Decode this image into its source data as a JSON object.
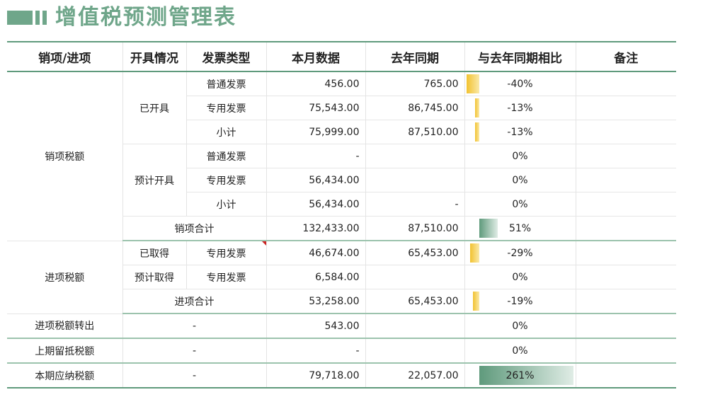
{
  "title": "增值税预测管理表",
  "headers": [
    "销项/进项",
    "开具情况",
    "发票类型",
    "本月数据",
    "去年同期",
    "与去年同期相比",
    "备注"
  ],
  "rows": {
    "sales_label": "销项税额",
    "issued_label": "已开具",
    "planned_label": "预计开具",
    "r1": {
      "type": "普通发票",
      "cur": "456.00",
      "prev": "765.00",
      "pct": "-40%",
      "ratio": -0.4
    },
    "r2": {
      "type": "专用发票",
      "cur": "75,543.00",
      "prev": "86,745.00",
      "pct": "-13%",
      "ratio": -0.13
    },
    "r3": {
      "type": "小计",
      "cur": "75,999.00",
      "prev": "87,510.00",
      "pct": "-13%",
      "ratio": -0.13
    },
    "r4": {
      "type": "普通发票",
      "cur": "-",
      "prev": "",
      "pct": "0%",
      "ratio": 0
    },
    "r5": {
      "type": "专用发票",
      "cur": "56,434.00",
      "prev": "",
      "pct": "0%",
      "ratio": 0
    },
    "r6": {
      "type": "小计",
      "cur": "56,434.00",
      "prev": "-",
      "pct": "0%",
      "ratio": 0
    },
    "r7": {
      "label": "销项合计",
      "cur": "132,433.00",
      "prev": "87,510.00",
      "pct": "51%",
      "ratio": 0.51
    },
    "input_label": "进项税额",
    "obtained_label": "已取得",
    "planned_obtain_label": "预计取得",
    "r8": {
      "type": "专用发票",
      "cur": "46,674.00",
      "prev": "65,453.00",
      "pct": "-29%",
      "ratio": -0.29
    },
    "r9": {
      "type": "专用发票",
      "cur": "6,584.00",
      "prev": "",
      "pct": "0%",
      "ratio": 0
    },
    "r10": {
      "label": "进项合计",
      "cur": "53,258.00",
      "prev": "65,453.00",
      "pct": "-19%",
      "ratio": -0.19
    },
    "r11": {
      "label": "进项税额转出",
      "dash": "-",
      "cur": "543.00",
      "prev": "",
      "pct": "0%",
      "ratio": 0
    },
    "r12": {
      "label": "上期留抵税额",
      "dash": "-",
      "cur": "-",
      "prev": "",
      "pct": "0%",
      "ratio": 0
    },
    "r13": {
      "label": "本期应纳税额",
      "dash": "-",
      "cur": "79,718.00",
      "prev": "22,057.00",
      "pct": "261%",
      "ratio": 2.61
    }
  },
  "colors": {
    "accent": "#6fa68a",
    "negative_bar": "#f2c230",
    "positive_bar": "#5f9a7c"
  }
}
